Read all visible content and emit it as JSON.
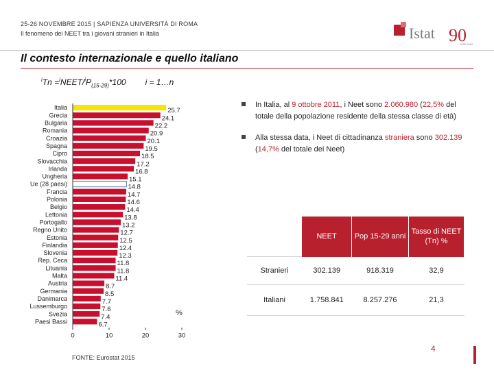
{
  "header": {
    "event": "25-26 NOVEMBRE 2015 | SAPIENZA UNIVERSITÀ DI ROMA",
    "subtitle": "Il fenomeno dei NEET tra i giovani stranieri in Italia"
  },
  "logo": {
    "text": "Istat",
    "anniversary": "90",
    "tagline": "1926-2016",
    "color": "#b8202e"
  },
  "title": "Il contesto internazionale e quello italiano",
  "formula": {
    "sup1": "i",
    "tn": "Tn =",
    "sup2": "i",
    "neet": "NEET/",
    "sup3": "i",
    "p": "P",
    "sub": "(15-29)",
    "times": "*100",
    "range": "i = 1…n"
  },
  "chart_data": {
    "type": "bar",
    "orientation": "horizontal",
    "categories": [
      "Italia",
      "Grecia",
      "Bulgaria",
      "Romania",
      "Croazia",
      "Spagna",
      "Cipro",
      "Slovacchia",
      "Irlanda",
      "Ungheria",
      "Ue (28 paesi)",
      "Francia",
      "Polonia",
      "Belgio",
      "Lettonia",
      "Portogallo",
      "Regno Unito",
      "Estonia",
      "Finlandia",
      "Slovenia",
      "Rep. Ceca",
      "Lituania",
      "Malta",
      "Austria",
      "Germania",
      "Danimarca",
      "Lussemburgo",
      "Svezia",
      "Paesi Bassi"
    ],
    "values": [
      25.7,
      24.1,
      22.2,
      20.9,
      20.1,
      19.5,
      18.5,
      17.2,
      16.8,
      15.1,
      14.8,
      14.7,
      14.6,
      14.4,
      13.8,
      13.2,
      12.7,
      12.5,
      12.4,
      12.3,
      11.8,
      11.8,
      11.4,
      8.7,
      8.5,
      7.7,
      7.6,
      7.4,
      6.7
    ],
    "value_labels": [
      "25.7",
      "24.1",
      "22.2",
      "20.9",
      "20.1",
      "19.5",
      "18.5",
      "17.2",
      "16.8",
      "15.1",
      "14.8",
      "14.7",
      "14.6",
      "14.4",
      "13.8",
      "13.2",
      "12.7",
      "12.5",
      "12.4",
      "12.3",
      "11.8",
      "11.8",
      "11.4",
      "8.7",
      "8.5",
      "7.7",
      "7.6",
      "7.4",
      "6.7"
    ],
    "highlight": {
      "Italia": "#f5e500",
      "Ue (28 paesi)": "#ffffff"
    },
    "bar_color": "#c8102e",
    "xlim": [
      0,
      30
    ],
    "xticks": [
      "0",
      "10",
      "20",
      "30"
    ],
    "unit_label": "%",
    "source": "FONTE: Eurostat 2015"
  },
  "bullets": [
    {
      "pre": "In Italia, al ",
      "date": "9 ottobre 2011",
      "mid": ", i Neet sono ",
      "value": "2.060.980",
      "open": " (",
      "pct": "22,5%",
      "post": " del totale della popolazione residente della stessa classe di età)"
    },
    {
      "pre": "Alla stessa data, i Neet di cittadinanza ",
      "keyword": "straniera",
      "mid": " sono ",
      "value": "302.139",
      "open": " (",
      "pct": "14,7%",
      "post": " del totale dei Neet)"
    }
  ],
  "table": {
    "headers": [
      "NEET",
      "Pop 15-29 anni",
      "Tasso di NEET (Tn) %"
    ],
    "rows": [
      {
        "label": "Stranieri",
        "cells": [
          "302.139",
          "918.319",
          "32,9"
        ]
      },
      {
        "label": "Italiani",
        "cells": [
          "1.758.841",
          "8.257.276",
          "21,3"
        ]
      }
    ]
  },
  "page_number": "4"
}
